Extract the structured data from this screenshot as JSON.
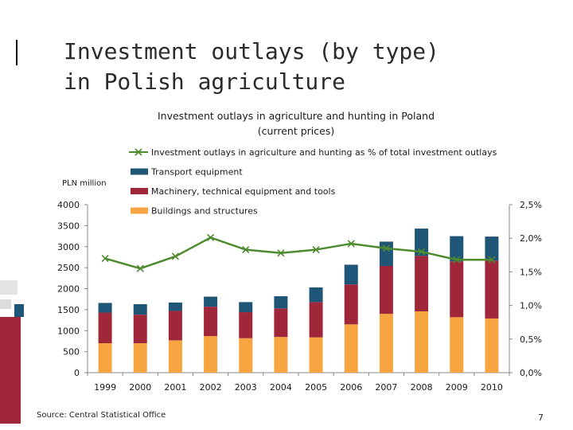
{
  "slide": {
    "title": "Investment outlays (by type)\nin Polish agriculture",
    "source": "Source: Central Statistical Office",
    "page_number": "7"
  },
  "colors": {
    "buildings": "#F7A541",
    "machinery": "#A0263A",
    "transport": "#1F5577",
    "line": "#4E8A2E",
    "axis": "#888888"
  },
  "chart_data": {
    "type": "bar",
    "stacked": true,
    "title": "Investment outlays in agriculture and hunting in Poland\n(current prices)",
    "ylabel": "PLN million",
    "categories": [
      "1999",
      "2000",
      "2001",
      "2002",
      "2003",
      "2004",
      "2005",
      "2006",
      "2007",
      "2008",
      "2009",
      "2010"
    ],
    "ylim": [
      0,
      4000
    ],
    "yticks": [
      "0",
      "500",
      "1000",
      "1500",
      "2000",
      "2500",
      "3000",
      "3500",
      "4000"
    ],
    "y2lim": [
      0,
      2.5
    ],
    "y2ticks": [
      "0,0%",
      "0,5%",
      "1,0%",
      "1,5%",
      "2,0%",
      "2,5%"
    ],
    "legend_position": "top",
    "series": [
      {
        "name": "Buildings and structures",
        "kind": "bar",
        "axis": "left",
        "values": [
          700,
          700,
          770,
          870,
          820,
          850,
          840,
          1150,
          1400,
          1460,
          1320,
          1290
        ]
      },
      {
        "name": "Machinery, technical equipment and tools",
        "kind": "bar",
        "axis": "left",
        "values": [
          730,
          680,
          700,
          700,
          620,
          680,
          840,
          950,
          1140,
          1320,
          1330,
          1380
        ]
      },
      {
        "name": "Transport equipment",
        "kind": "bar",
        "axis": "left",
        "values": [
          230,
          250,
          200,
          240,
          240,
          290,
          350,
          470,
          580,
          650,
          600,
          570
        ]
      },
      {
        "name": "Investment outlays in agriculture and hunting as % of total investment outlays",
        "kind": "line",
        "axis": "right",
        "values": [
          1.7,
          1.55,
          1.73,
          2.01,
          1.83,
          1.78,
          1.83,
          1.92,
          1.85,
          1.8,
          1.68,
          1.68
        ]
      }
    ]
  }
}
